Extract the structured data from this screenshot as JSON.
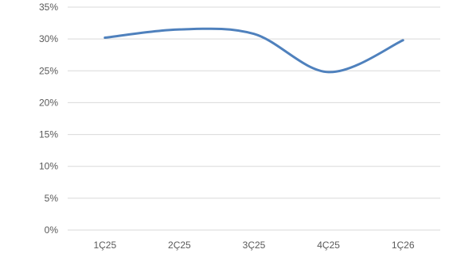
{
  "chart_data": {
    "type": "line",
    "categories": [
      "1Ç25",
      "2Ç25",
      "3Ç25",
      "4Ç25",
      "1Ç26"
    ],
    "series": [
      {
        "values": [
          30.2,
          31.5,
          30.8,
          24.8,
          29.8
        ]
      }
    ],
    "ylim": [
      0,
      35
    ],
    "yticks": [
      0,
      5,
      10,
      15,
      20,
      25,
      30,
      35
    ],
    "ytick_labels": [
      "0%",
      "5%",
      "10%",
      "15%",
      "20%",
      "25%",
      "30%",
      "35%"
    ],
    "grid": true,
    "smooth": true,
    "colors": {
      "series": "#4f81bd",
      "grid": "#d9d9d9",
      "text": "#595959"
    }
  }
}
